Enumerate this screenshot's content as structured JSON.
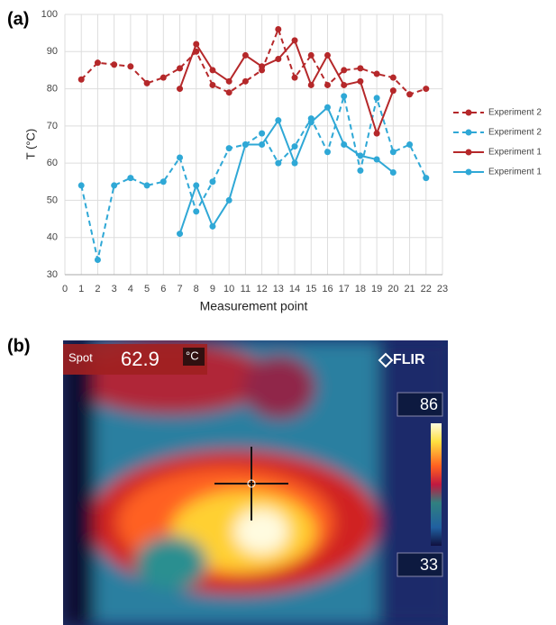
{
  "chart_data": {
    "type": "line",
    "panel_label": "(a)",
    "x_label": "Measurement point",
    "y_label": "T (°C)",
    "x": [
      1,
      2,
      3,
      4,
      5,
      6,
      7,
      8,
      9,
      10,
      11,
      12,
      13,
      14,
      15,
      16,
      17,
      18,
      19,
      20,
      21,
      22
    ],
    "series": [
      {
        "name": "Experiment 2",
        "color": "#b5282a",
        "style": "dashed",
        "values": [
          82.5,
          87,
          86.5,
          86,
          81.5,
          83,
          85.5,
          90,
          81,
          79,
          82,
          85,
          96,
          83,
          89,
          81,
          85,
          85.5,
          84,
          83,
          78.5,
          80
        ]
      },
      {
        "name": "Experiment 2",
        "color": "#2fa8d6",
        "style": "dashed",
        "values": [
          54,
          34,
          54,
          56,
          54,
          55,
          61.5,
          47,
          55,
          64,
          65,
          68,
          60,
          64.5,
          72,
          63,
          78,
          58,
          77.5,
          63,
          65,
          56
        ]
      },
      {
        "name": "Experiment 1",
        "color": "#b5282a",
        "style": "solid",
        "values": [
          null,
          null,
          null,
          null,
          null,
          null,
          80,
          92,
          85,
          82,
          89,
          86,
          88,
          93,
          81,
          89,
          81,
          82,
          68,
          79.5,
          null,
          null
        ]
      },
      {
        "name": "Experiment 1",
        "color": "#2fa8d6",
        "style": "solid",
        "values": [
          null,
          null,
          null,
          null,
          null,
          null,
          41,
          54,
          43,
          50,
          65,
          65,
          71.5,
          60,
          71,
          75,
          65,
          62,
          61,
          57.5,
          null,
          null
        ]
      }
    ],
    "xlim": [
      0,
      23
    ],
    "xticks": [
      0,
      1,
      2,
      3,
      4,
      5,
      6,
      7,
      8,
      9,
      10,
      11,
      12,
      13,
      14,
      15,
      16,
      17,
      18,
      19,
      20,
      21,
      22,
      23
    ],
    "ylim": [
      30,
      100
    ],
    "yticks": [
      30,
      40,
      50,
      60,
      70,
      80,
      90,
      100
    ],
    "grid": true,
    "legend": "right"
  },
  "thermal_image": {
    "panel_label": "(b)",
    "spot_label": "Spot",
    "spot_value": "62.9",
    "unit": "°C",
    "brand": "FLIR",
    "scale_max": "86",
    "scale_min": "33"
  }
}
